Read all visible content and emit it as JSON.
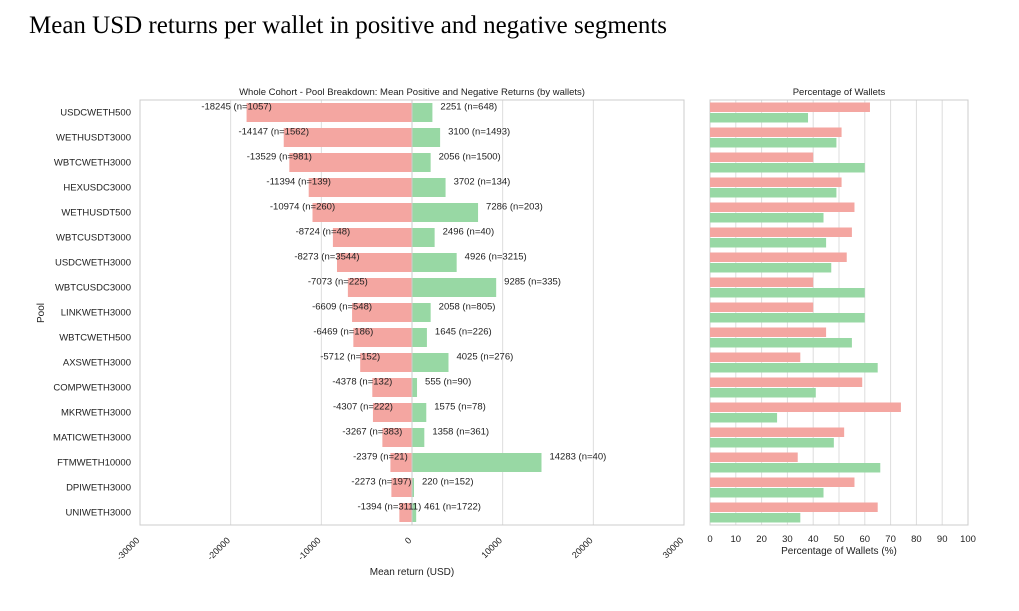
{
  "page_title": "Mean USD returns per wallet in positive and negative segments",
  "colors": {
    "negative": "#f4a6a1",
    "positive": "#98d8a4",
    "grid": "#dddddd",
    "frame": "#cccccc"
  },
  "chart_data": [
    {
      "type": "bar",
      "orientation": "horizontal",
      "title": "Whole Cohort - Pool Breakdown: Mean Positive and Negative Returns (by wallets)",
      "xlabel": "Mean return (USD)",
      "ylabel": "Pool",
      "xlim": [
        -30000,
        30000
      ],
      "xticks": [
        -30000,
        -20000,
        -10000,
        0,
        10000,
        20000,
        30000
      ],
      "grid": true,
      "categories": [
        "USDCWETH500",
        "WETHUSDT3000",
        "WBTCWETH3000",
        "HEXUSDC3000",
        "WETHUSDT500",
        "WBTCUSDT3000",
        "USDCWETH3000",
        "WBTCUSDC3000",
        "LINKWETH3000",
        "WBTCWETH500",
        "AXSWETH3000",
        "COMPWETH3000",
        "MKRWETH3000",
        "MATICWETH3000",
        "FTMWETH10000",
        "DPIWETH3000",
        "UNIWETH3000"
      ],
      "series": [
        {
          "name": "negative",
          "values": [
            -18245,
            -14147,
            -13529,
            -11394,
            -10974,
            -8724,
            -8273,
            -7073,
            -6609,
            -6469,
            -5712,
            -4378,
            -4307,
            -3267,
            -2379,
            -2273,
            -1394
          ],
          "labels": [
            "-18245 (n=1057)",
            "-14147 (n=1562)",
            "-13529 (n=981)",
            "-11394 (n=139)",
            "-10974 (n=260)",
            "-8724 (n=48)",
            "-8273 (n=3544)",
            "-7073 (n=225)",
            "-6609 (n=548)",
            "-6469 (n=186)",
            "-5712 (n=152)",
            "-4378 (n=132)",
            "-4307 (n=222)",
            "-3267 (n=383)",
            "-2379 (n=21)",
            "-2273 (n=197)",
            "-1394 (n=3111)"
          ]
        },
        {
          "name": "positive",
          "values": [
            2251,
            3100,
            2056,
            3702,
            7286,
            2496,
            4926,
            9285,
            2058,
            1645,
            4025,
            555,
            1575,
            1358,
            14283,
            220,
            461
          ],
          "labels": [
            "2251 (n=648)",
            "3100 (n=1493)",
            "2056 (n=1500)",
            "3702 (n=134)",
            "7286 (n=203)",
            "2496 (n=40)",
            "4926 (n=3215)",
            "9285 (n=335)",
            "2058 (n=805)",
            "1645 (n=226)",
            "4025 (n=276)",
            "555 (n=90)",
            "1575 (n=78)",
            "1358 (n=361)",
            "14283 (n=40)",
            "220 (n=152)",
            "461 (n=1722)"
          ]
        }
      ]
    },
    {
      "type": "bar",
      "orientation": "horizontal",
      "title": "Percentage of Wallets",
      "xlabel": "Percentage of Wallets (%)",
      "ylabel": "",
      "xlim": [
        0,
        100
      ],
      "xticks": [
        0,
        10,
        20,
        30,
        40,
        50,
        60,
        70,
        80,
        90,
        100
      ],
      "grid": true,
      "series": [
        {
          "name": "negative",
          "values": [
            62,
            51,
            40,
            51,
            56,
            55,
            53,
            40,
            40,
            45,
            35,
            59,
            74,
            52,
            34,
            56,
            65
          ]
        },
        {
          "name": "positive",
          "values": [
            38,
            49,
            60,
            49,
            44,
            45,
            47,
            60,
            60,
            55,
            65,
            41,
            26,
            48,
            66,
            44,
            35
          ]
        }
      ]
    }
  ]
}
